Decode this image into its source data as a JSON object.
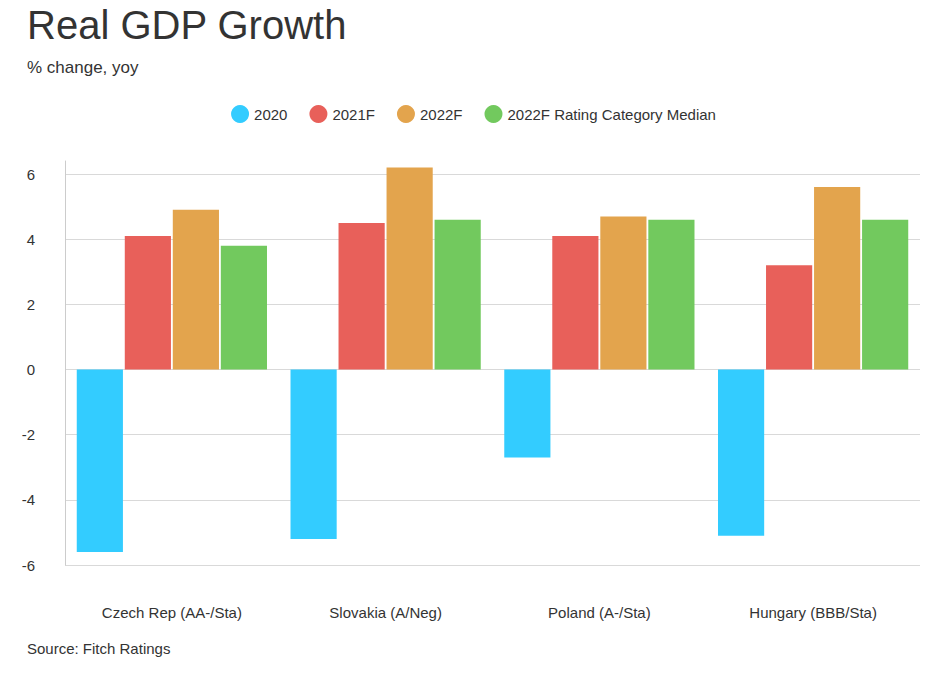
{
  "chart_data": {
    "type": "bar",
    "title": "Real GDP Growth",
    "subtitle": "% change, yoy",
    "source": "Source: Fitch Ratings",
    "categories": [
      "Czech Rep (AA-/Sta)",
      "Slovakia (A/Neg)",
      "Poland (A-/Sta)",
      "Hungary (BBB/Sta)"
    ],
    "series": [
      {
        "name": "2020",
        "color": "#33ccff",
        "values": [
          -5.6,
          -5.2,
          -2.7,
          -5.1
        ]
      },
      {
        "name": "2021F",
        "color": "#e8605a",
        "values": [
          4.1,
          4.5,
          4.1,
          3.2
        ]
      },
      {
        "name": "2022F",
        "color": "#e3a44d",
        "values": [
          4.9,
          6.2,
          4.7,
          5.6
        ]
      },
      {
        "name": "2022F Rating Category Median",
        "color": "#72c95e",
        "values": [
          3.8,
          4.6,
          4.6,
          4.6
        ]
      }
    ],
    "ylim": [
      -6,
      6.4
    ],
    "yticks": [
      -6,
      -4,
      -2,
      0,
      2,
      4,
      6
    ],
    "grid": true,
    "legend": "top"
  }
}
